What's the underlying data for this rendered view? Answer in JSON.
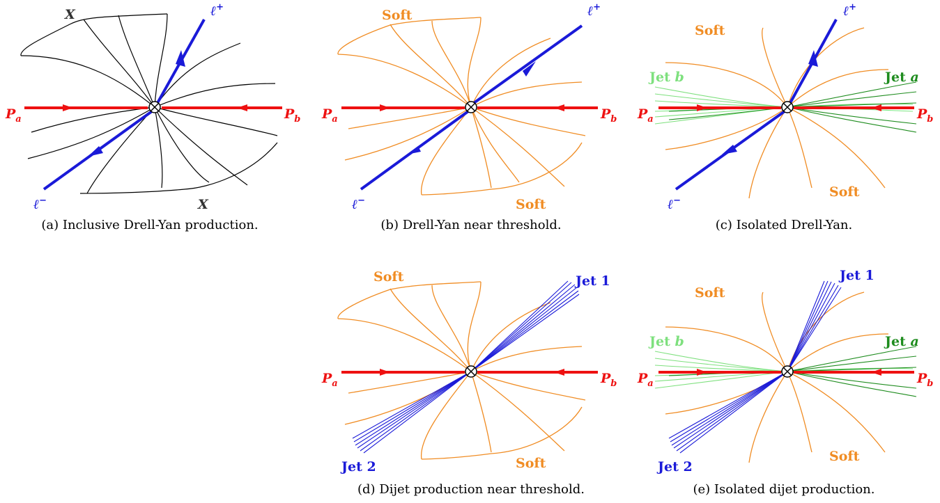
{
  "colors": {
    "beam": "#ee1111",
    "lepton": "#1a1ad8",
    "soft": "#f08c23",
    "jet_a": "#1e8c1e",
    "jet_b": "#7ee07e",
    "hadrons": "#000000"
  },
  "panels": {
    "a": {
      "caption": "(a) Inclusive Drell-Yan production.",
      "labels": {
        "pa": "P",
        "pa_sub": "a",
        "pb": "P",
        "pb_sub": "b",
        "lplus": "ℓ",
        "lplus_sup": "+",
        "lminus": "ℓ",
        "lminus_sup": "−",
        "x_top": "X",
        "x_bottom": "X"
      }
    },
    "b": {
      "caption": "(b) Drell-Yan near threshold.",
      "labels": {
        "pa": "P",
        "pa_sub": "a",
        "pb": "P",
        "pb_sub": "b",
        "lplus": "ℓ",
        "lplus_sup": "+",
        "lminus": "ℓ",
        "lminus_sup": "−",
        "soft_top": "Soft",
        "soft_bottom": "Soft"
      }
    },
    "c": {
      "caption": "(c) Isolated Drell-Yan.",
      "labels": {
        "pa": "P",
        "pa_sub": "a",
        "pb": "P",
        "pb_sub": "b",
        "lplus": "ℓ",
        "lplus_sup": "+",
        "lminus": "ℓ",
        "lminus_sup": "−",
        "soft_top": "Soft",
        "soft_bottom": "Soft",
        "jet_b": "Jet",
        "jet_b_var": "b",
        "jet_a": "Jet",
        "jet_a_var": "a"
      }
    },
    "d": {
      "caption": "(d) Dijet production near threshold.",
      "labels": {
        "pa": "P",
        "pa_sub": "a",
        "pb": "P",
        "pb_sub": "b",
        "soft_top": "Soft",
        "soft_bottom": "Soft",
        "jet1": "Jet 1",
        "jet2": "Jet 2"
      }
    },
    "e": {
      "caption": "(e) Isolated dijet production.",
      "labels": {
        "pa": "P",
        "pa_sub": "a",
        "pb": "P",
        "pb_sub": "b",
        "soft_top": "Soft",
        "soft_bottom": "Soft",
        "jet1": "Jet 1",
        "jet2": "Jet 2",
        "jet_b": "Jet",
        "jet_b_var": "b",
        "jet_a": "Jet",
        "jet_a_var": "a"
      }
    }
  }
}
